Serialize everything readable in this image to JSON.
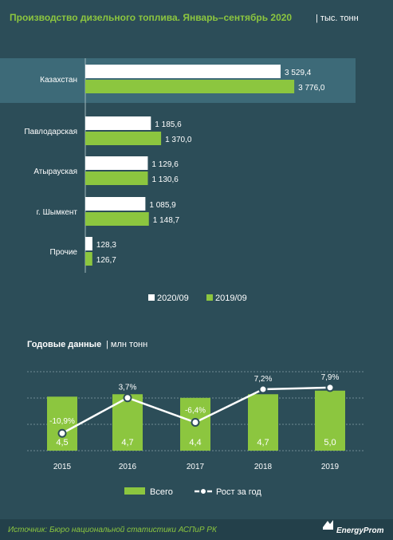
{
  "header": {
    "title": "Производство дизельного топлива. Январь–сентябрь 2020",
    "unit": "| тыс. тонн"
  },
  "chart_data": [
    {
      "type": "bar",
      "orientation": "horizontal",
      "title": "Производство дизельного топлива. Январь–сентябрь 2020",
      "ylabel": "тыс. тонн",
      "categories": [
        "Казахстан",
        "Павлодарская",
        "Атырауская",
        "г. Шымкент",
        "Прочие"
      ],
      "series": [
        {
          "name": "2020/09",
          "color": "#ffffff",
          "values": [
            3529.4,
            1185.6,
            1129.6,
            1085.9,
            128.3
          ],
          "labels": [
            "3 529,4",
            "1 185,6",
            "1 129,6",
            "1 085,9",
            "128,3"
          ]
        },
        {
          "name": "2019/09",
          "color": "#8cc63f",
          "values": [
            3776.0,
            1370.0,
            1130.6,
            1148.7,
            126.7
          ],
          "labels": [
            "3 776,0",
            "1 370,0",
            "1 130,6",
            "1 148,7",
            "126,7"
          ]
        }
      ],
      "legend": "bottom",
      "highlight_row": "Казахстан"
    },
    {
      "type": "bar",
      "subtype": "bar+line",
      "title": "Годовые данные",
      "ylabel": "млн тонн",
      "categories": [
        "2015",
        "2016",
        "2017",
        "2018",
        "2019"
      ],
      "series": [
        {
          "name": "Всего",
          "kind": "bar",
          "color": "#8cc63f",
          "values": [
            4.5,
            4.7,
            4.4,
            4.7,
            5.0
          ],
          "labels": [
            "4,5",
            "4,7",
            "4,4",
            "4,7",
            "5,0"
          ]
        },
        {
          "name": "Рост за год",
          "kind": "line",
          "color": "#ffffff",
          "values": [
            -10.9,
            3.7,
            -6.4,
            7.2,
            7.9
          ],
          "labels": [
            "-10,9%",
            "3,7%",
            "-6,4%",
            "7,2%",
            "7,9%"
          ]
        }
      ],
      "grid": true,
      "legend": "bottom"
    }
  ],
  "annual": {
    "title": "Годовые данные",
    "unit": "| млн тонн"
  },
  "footer": {
    "source": "Источник: Бюро национальной  статистики АСПиР РК",
    "brand": "EnergyProm"
  }
}
